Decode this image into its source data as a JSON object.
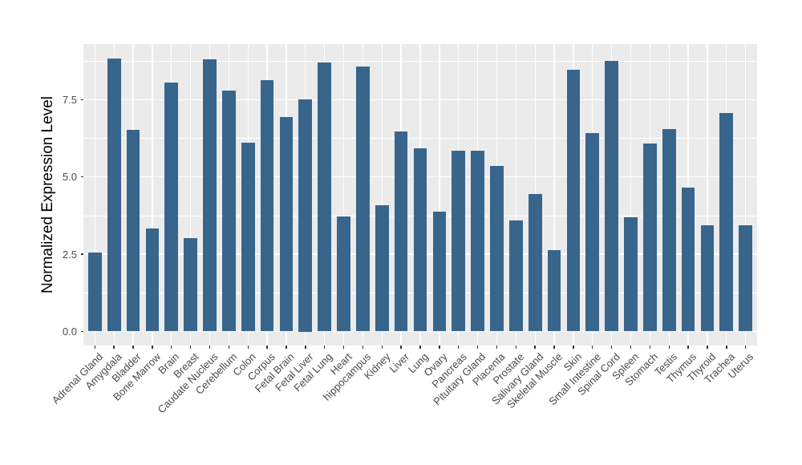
{
  "chart_data": {
    "type": "bar",
    "title": "",
    "xlabel": "",
    "ylabel": "Normalized Expression Level",
    "categories": [
      "Adrenal Gland",
      "Amygdala",
      "Bladder",
      "Bone Marrow",
      "Brain",
      "Breast",
      "Caudate Nucleus",
      "Cerebellum",
      "Colon",
      "Corpus",
      "Fetal Brain",
      "Fetal Liver",
      "Fetal Lung",
      "Heart",
      "hippocampus",
      "Kidney",
      "Liver",
      "Lung",
      "Ovary",
      "Pancreas",
      "Pituitary Gland",
      "Placenta",
      "Prostate",
      "Salivary Gland",
      "Skeletal Muscle",
      "Skin",
      "Small Intestine",
      "Spinal Cord",
      "Spleen",
      "Stomach",
      "Testis",
      "Thymus",
      "Thyroid",
      "Trachea",
      "Uterus"
    ],
    "values": [
      2.55,
      8.82,
      6.52,
      3.34,
      8.05,
      3.01,
      8.8,
      7.8,
      6.1,
      8.13,
      6.93,
      7.5,
      8.7,
      3.71,
      8.58,
      4.08,
      6.48,
      5.94,
      3.88,
      5.84,
      5.84,
      5.35,
      3.58,
      4.46,
      2.62,
      8.48,
      6.43,
      8.76,
      3.7,
      6.09,
      6.56,
      4.66,
      3.43,
      7.08,
      3.45
    ],
    "ylim": [
      0,
      9.3
    ],
    "yticks": [
      0,
      2.5,
      5,
      7.5
    ],
    "ytick_labels": [
      "0.0",
      "2.5",
      "5.0",
      "7.5"
    ],
    "minor_gridlines": [
      1.25,
      3.75,
      6.25,
      8.75
    ],
    "grid": "on",
    "legend": "none",
    "colors": {
      "bar": "#38658C",
      "panel_bg": "#EBEBEB",
      "grid": "#FFFFFF",
      "tick": "#333333",
      "axis_text": "#4A4A4A",
      "axis_title": "#000000",
      "background": "#FFFFFF"
    }
  }
}
